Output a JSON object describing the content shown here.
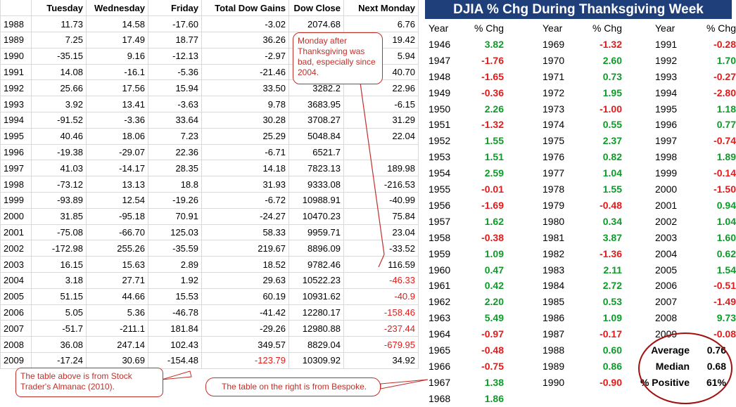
{
  "left_table": {
    "headers": [
      "",
      "Tuesday",
      "Wednesday",
      "Friday",
      "Total Dow Gains",
      "Dow Close",
      "Next Monday"
    ],
    "rows": [
      {
        "year": "1988",
        "tue": "11.73",
        "wed": "14.58",
        "fri": "-17.60",
        "total": "-3.02",
        "close": "2074.68",
        "mon": "6.76"
      },
      {
        "year": "1989",
        "tue": "7.25",
        "wed": "17.49",
        "fri": "18.77",
        "total": "36.26",
        "close": "",
        "mon": "19.42"
      },
      {
        "year": "1990",
        "tue": "-35.15",
        "wed": "9.16",
        "fri": "-12.13",
        "total": "-2.97",
        "close": "",
        "mon": "5.94"
      },
      {
        "year": "1991",
        "tue": "14.08",
        "wed": "-16.1",
        "fri": "-5.36",
        "total": "-21.46",
        "close": "",
        "mon": "40.70"
      },
      {
        "year": "1992",
        "tue": "25.66",
        "wed": "17.56",
        "fri": "15.94",
        "total": "33.50",
        "close": "3282.2",
        "mon": "22.96"
      },
      {
        "year": "1993",
        "tue": "3.92",
        "wed": "13.41",
        "fri": "-3.63",
        "total": "9.78",
        "close": "3683.95",
        "mon": "-6.15"
      },
      {
        "year": "1994",
        "tue": "-91.52",
        "wed": "-3.36",
        "fri": "33.64",
        "total": "30.28",
        "close": "3708.27",
        "mon": "31.29"
      },
      {
        "year": "1995",
        "tue": "40.46",
        "wed": "18.06",
        "fri": "7.23",
        "total": "25.29",
        "close": "5048.84",
        "mon": "22.04"
      },
      {
        "year": "1996",
        "tue": "-19.38",
        "wed": "-29.07",
        "fri": "22.36",
        "total": "-6.71",
        "close": "6521.7",
        "mon": ""
      },
      {
        "year": "1997",
        "tue": "41.03",
        "wed": "-14.17",
        "fri": "28.35",
        "total": "14.18",
        "close": "7823.13",
        "mon": "189.98"
      },
      {
        "year": "1998",
        "tue": "-73.12",
        "wed": "13.13",
        "fri": "18.8",
        "total": "31.93",
        "close": "9333.08",
        "mon": "-216.53"
      },
      {
        "year": "1999",
        "tue": "-93.89",
        "wed": "12.54",
        "fri": "-19.26",
        "total": "-6.72",
        "close": "10988.91",
        "mon": "-40.99"
      },
      {
        "year": "2000",
        "tue": "31.85",
        "wed": "-95.18",
        "fri": "70.91",
        "total": "-24.27",
        "close": "10470.23",
        "mon": "75.84"
      },
      {
        "year": "2001",
        "tue": "-75.08",
        "wed": "-66.70",
        "fri": "125.03",
        "total": "58.33",
        "close": "9959.71",
        "mon": "23.04"
      },
      {
        "year": "2002",
        "tue": "-172.98",
        "wed": "255.26",
        "fri": "-35.59",
        "total": "219.67",
        "close": "8896.09",
        "mon": "-33.52"
      },
      {
        "year": "2003",
        "tue": "16.15",
        "wed": "15.63",
        "fri": "2.89",
        "total": "18.52",
        "close": "9782.46",
        "mon": "116.59"
      },
      {
        "year": "2004",
        "tue": "3.18",
        "wed": "27.71",
        "fri": "1.92",
        "total": "29.63",
        "close": "10522.23",
        "mon": "-46.33",
        "mon_red": true
      },
      {
        "year": "2005",
        "tue": "51.15",
        "wed": "44.66",
        "fri": "15.53",
        "total": "60.19",
        "close": "10931.62",
        "mon": "-40.9",
        "mon_red": true
      },
      {
        "year": "2006",
        "tue": "5.05",
        "wed": "5.36",
        "fri": "-46.78",
        "total": "-41.42",
        "close": "12280.17",
        "mon": "-158.46",
        "mon_red": true
      },
      {
        "year": "2007",
        "tue": "-51.7",
        "wed": "-211.1",
        "fri": "181.84",
        "total": "-29.26",
        "close": "12980.88",
        "mon": "-237.44",
        "mon_red": true
      },
      {
        "year": "2008",
        "tue": "36.08",
        "wed": "247.14",
        "fri": "102.43",
        "total": "349.57",
        "close": "8829.04",
        "mon": "-679.95",
        "mon_red": true
      },
      {
        "year": "2009",
        "tue": "-17.24",
        "wed": "30.69",
        "fri": "-154.48",
        "total": "-123.79",
        "close": "10309.92",
        "mon": "34.92",
        "total_red": true
      }
    ]
  },
  "right_table": {
    "title": "DJIA % Chg During Thanksgiving Week",
    "col_year": "Year",
    "col_chg": "% Chg",
    "colors": {
      "positive": "#0e9b2a",
      "negative": "#e41b1b",
      "title_bg": "#1f3f7a"
    },
    "columns": [
      [
        [
          "1946",
          "3.82"
        ],
        [
          "1947",
          "-1.76"
        ],
        [
          "1948",
          "-1.65"
        ],
        [
          "1949",
          "-0.36"
        ],
        [
          "1950",
          "2.26"
        ],
        [
          "1951",
          "-1.32"
        ],
        [
          "1952",
          "1.55"
        ],
        [
          "1953",
          "1.51"
        ],
        [
          "1954",
          "2.59"
        ],
        [
          "1955",
          "-0.01"
        ],
        [
          "1956",
          "-1.69"
        ],
        [
          "1957",
          "1.62"
        ],
        [
          "1958",
          "-0.38"
        ],
        [
          "1959",
          "1.09"
        ],
        [
          "1960",
          "0.47"
        ],
        [
          "1961",
          "0.42"
        ],
        [
          "1962",
          "2.20"
        ],
        [
          "1963",
          "5.49"
        ],
        [
          "1964",
          "-0.97"
        ],
        [
          "1965",
          "-0.48"
        ],
        [
          "1966",
          "-0.75"
        ],
        [
          "1967",
          "1.38"
        ],
        [
          "1968",
          "1.86"
        ]
      ],
      [
        [
          "1969",
          "-1.32"
        ],
        [
          "1970",
          "2.60"
        ],
        [
          "1971",
          "0.73"
        ],
        [
          "1972",
          "1.95"
        ],
        [
          "1973",
          "-1.00"
        ],
        [
          "1974",
          "0.55"
        ],
        [
          "1975",
          "2.37"
        ],
        [
          "1976",
          "0.82"
        ],
        [
          "1977",
          "1.04"
        ],
        [
          "1978",
          "1.55"
        ],
        [
          "1979",
          "-0.48"
        ],
        [
          "1980",
          "0.34"
        ],
        [
          "1981",
          "3.87"
        ],
        [
          "1982",
          "-1.36"
        ],
        [
          "1983",
          "2.11"
        ],
        [
          "1984",
          "2.72"
        ],
        [
          "1985",
          "0.53"
        ],
        [
          "1986",
          "1.09"
        ],
        [
          "1987",
          "-0.17"
        ],
        [
          "1988",
          "0.60"
        ],
        [
          "1989",
          "0.86"
        ],
        [
          "1990",
          "-0.90"
        ]
      ],
      [
        [
          "1991",
          "-0.28"
        ],
        [
          "1992",
          "1.70"
        ],
        [
          "1993",
          "-0.27"
        ],
        [
          "1994",
          "-2.80"
        ],
        [
          "1995",
          "1.18"
        ],
        [
          "1996",
          "0.77"
        ],
        [
          "1997",
          "-0.74"
        ],
        [
          "1998",
          "1.89"
        ],
        [
          "1999",
          "-0.14"
        ],
        [
          "2000",
          "-1.50"
        ],
        [
          "2001",
          "0.94"
        ],
        [
          "2002",
          "1.04"
        ],
        [
          "2003",
          "1.60"
        ],
        [
          "2004",
          "0.62"
        ],
        [
          "2005",
          "1.54"
        ],
        [
          "2006",
          "-0.51"
        ],
        [
          "2007",
          "-1.49"
        ],
        [
          "2008",
          "9.73"
        ],
        [
          "2009",
          "-0.08"
        ]
      ]
    ],
    "summary": [
      {
        "label": "Average",
        "value": "0.76"
      },
      {
        "label": "Median",
        "value": "0.68"
      },
      {
        "label": "% Positive",
        "value": "61%"
      }
    ]
  },
  "callouts": {
    "monday": "Monday after Thanksgiving was bad, especially since 2004.",
    "source_left": "The table above is from Stock Trader's Almanac (2010).",
    "source_right": "The table on the right is from Bespoke."
  }
}
